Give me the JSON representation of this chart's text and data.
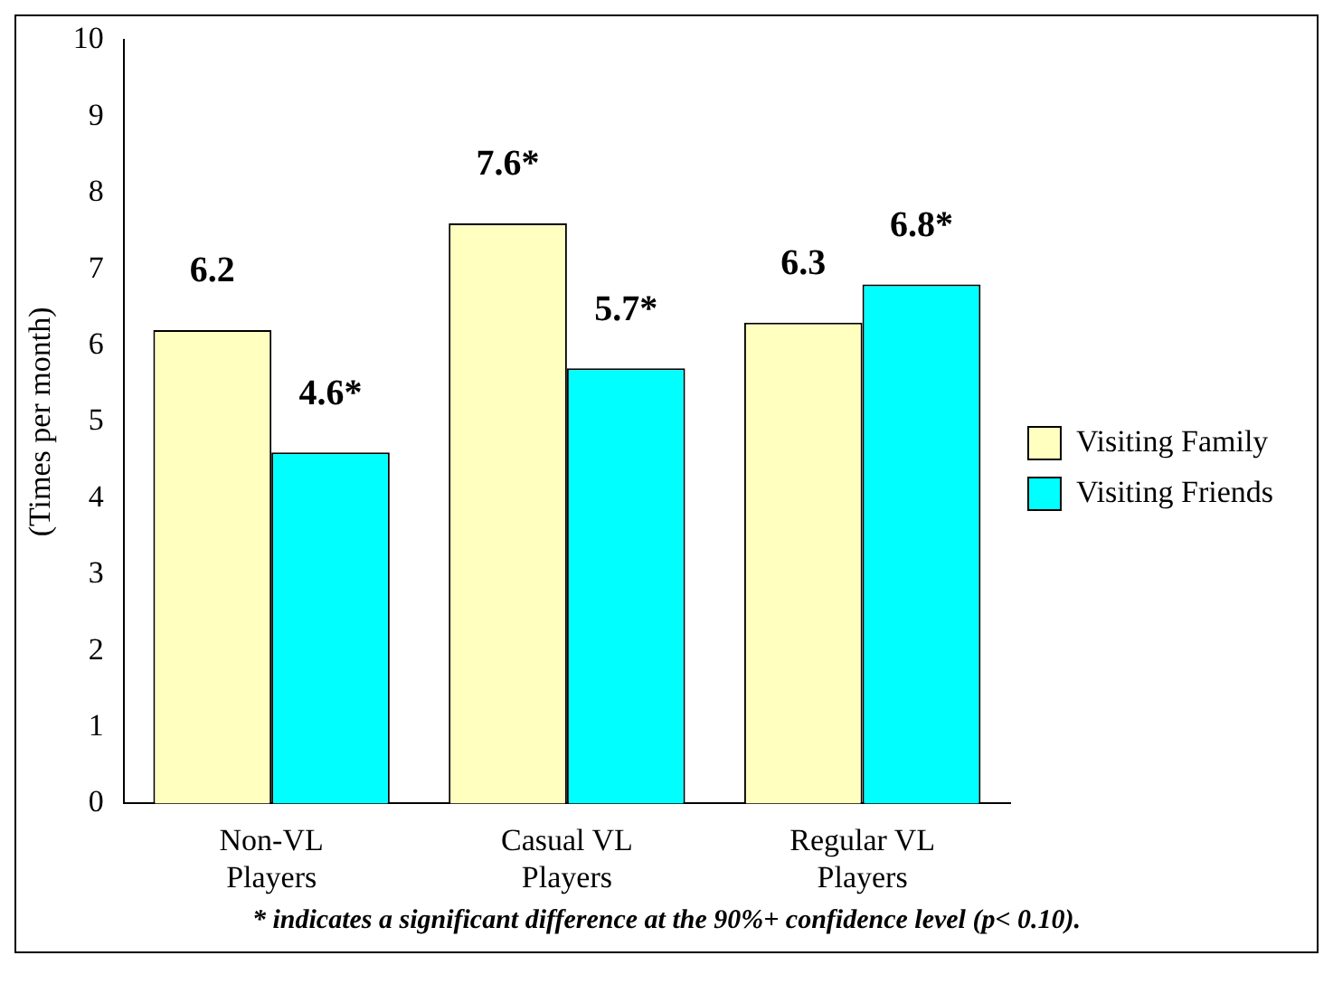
{
  "chart_data": {
    "type": "bar",
    "ylabel": "(Times per month)",
    "categories": [
      "Non-VL Players",
      "Casual VL Players",
      "Regular VL Players"
    ],
    "series": [
      {
        "name": "Visiting Family",
        "color": "#ffffc0",
        "values": [
          6.2,
          7.6,
          6.3
        ],
        "value_labels": [
          "6.2",
          "7.6*",
          "6.3"
        ]
      },
      {
        "name": "Visiting Friends",
        "color": "#00ffff",
        "values": [
          4.6,
          5.7,
          6.8
        ],
        "value_labels": [
          "4.6*",
          "5.7*",
          "6.8*"
        ]
      }
    ],
    "ylim": [
      0,
      10
    ],
    "yticks": [
      0,
      1,
      2,
      3,
      4,
      5,
      6,
      7,
      8,
      9,
      10
    ],
    "grid": false,
    "legend": "right",
    "annotations": [
      "* indicates a significant difference at the 90%+ confidence level (p< 0.10)."
    ]
  }
}
